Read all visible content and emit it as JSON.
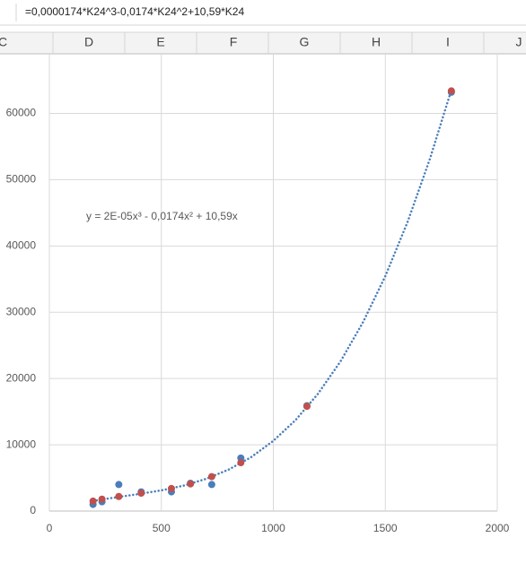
{
  "formula_bar": {
    "formula": "=0,0000174*K24^3-0,0174*K24^2+10,59*K24"
  },
  "column_headers": [
    "C",
    "D",
    "E",
    "F",
    "G",
    "H",
    "I",
    "J"
  ],
  "chart_data": {
    "type": "scatter",
    "series": [
      {
        "color": "#4a7ebb",
        "x": [
          195,
          235,
          310,
          410,
          545,
          630,
          725,
          855,
          1150,
          1795
        ],
        "values": [
          1000,
          1400,
          4000,
          2900,
          2900,
          4200,
          4000,
          8000,
          15900,
          63200
        ]
      },
      {
        "color": "#c0504d",
        "x": [
          195,
          235,
          310,
          410,
          545,
          630,
          725,
          855,
          1150,
          1795
        ],
        "values": [
          1500,
          1800,
          2200,
          2700,
          3400,
          4100,
          5200,
          7300,
          15800,
          63400
        ]
      }
    ],
    "trendline": {
      "label": "y = 2E-05x³ - 0,0174x² + 10,59x",
      "color": "#4a7ebb",
      "x": [
        195,
        300,
        400,
        500,
        600,
        700,
        800,
        900,
        1000,
        1100,
        1200,
        1300,
        1400,
        1500,
        1600,
        1700,
        1795
      ],
      "values": [
        1532,
        2081,
        2566,
        3120,
        3848,
        4855,
        6245,
        8122,
        10590,
        13754,
        17719,
        22589,
        28468,
        35460,
        43670,
        53203,
        63576
      ]
    },
    "xlim": [
      0,
      2000
    ],
    "xticks": [
      0,
      500,
      1000,
      1500,
      2000
    ],
    "ylim": [
      0,
      69000
    ],
    "yticks": [
      0,
      10000,
      20000,
      30000,
      40000,
      50000,
      60000
    ],
    "grid": true
  }
}
